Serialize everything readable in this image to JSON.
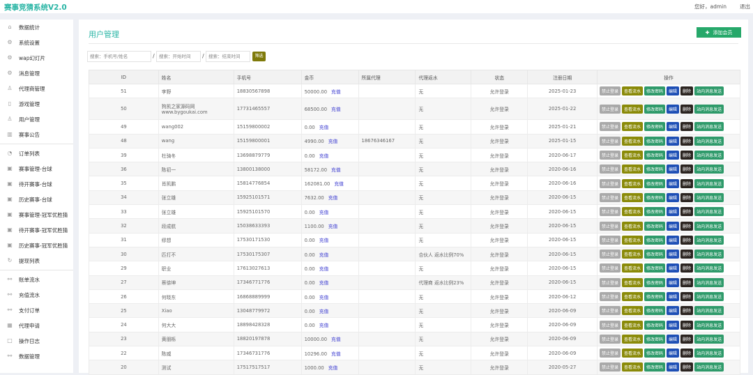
{
  "app": {
    "title": "赛事竞猜系统V2.0",
    "greeting": "您好，admin",
    "logout": "退出"
  },
  "sidebar": {
    "groups": [
      [
        {
          "label": "数据统计",
          "icon": "home-icon"
        },
        {
          "label": "系统设置",
          "icon": "gear-icon"
        },
        {
          "label": "wap幻灯片",
          "icon": "gear-icon"
        },
        {
          "label": "消息管理",
          "icon": "gear-icon"
        },
        {
          "label": "代理商管理",
          "icon": "user-icon"
        },
        {
          "label": "游戏管理",
          "icon": "file-icon"
        },
        {
          "label": "用户管理",
          "icon": "users-icon"
        },
        {
          "label": "赛事公告",
          "icon": "book-icon"
        }
      ],
      [
        {
          "label": "订单列表",
          "icon": "clock-icon"
        },
        {
          "label": "赛事管理-台球",
          "icon": "inbox-icon"
        },
        {
          "label": "待开赛事-台球",
          "icon": "inbox-icon"
        },
        {
          "label": "历史赛事-台球",
          "icon": "inbox-icon"
        },
        {
          "label": "赛事管理-冠军优胜猜",
          "icon": "inbox-icon"
        },
        {
          "label": "待开赛事-冠军优胜猜",
          "icon": "inbox-icon"
        },
        {
          "label": "历史赛事-冠军优胜猜",
          "icon": "inbox-icon"
        },
        {
          "label": "提现列表",
          "icon": "refresh-icon"
        }
      ],
      [
        {
          "label": "账单流水",
          "icon": "link-icon"
        },
        {
          "label": "充值流水",
          "icon": "link-icon"
        },
        {
          "label": "支付订单",
          "icon": "link-icon"
        },
        {
          "label": "代理申请",
          "icon": "grid-icon"
        },
        {
          "label": "操作日志",
          "icon": "square-icon"
        },
        {
          "label": "数据管理",
          "icon": "link-icon"
        }
      ]
    ]
  },
  "page": {
    "title": "用户管理",
    "add_button": "添加会员",
    "search": {
      "keyword_placeholder": "搜索：手机号/姓名",
      "start_placeholder": "搜索：开始时间",
      "end_placeholder": "搜索：结束时间",
      "filter_button": "筛选"
    }
  },
  "table": {
    "columns": [
      "ID",
      "姓名",
      "手机号",
      "金币",
      "所属代理",
      "代理返水",
      "状态",
      "注册日期",
      "操作"
    ],
    "recharge_label": "充值",
    "actions": [
      {
        "label": "禁止登录",
        "color": "#a9a9a9"
      },
      {
        "label": "查看流水",
        "color": "#8a8a08"
      },
      {
        "label": "修改密码",
        "color": "#2e9a6a"
      },
      {
        "label": "编辑",
        "color": "#1e4fb5"
      },
      {
        "label": "删除",
        "color": "#2b2420"
      },
      {
        "label": "站内消息发送",
        "color": "#2e9a6a"
      }
    ],
    "rows": [
      {
        "id": "51",
        "name": "李野",
        "phone": "18830567898",
        "coins": "50000.00",
        "agent": "",
        "rebate": "无",
        "status": "允许登录",
        "date": "2025-01-23"
      },
      {
        "id": "50",
        "name": "狗凯之家源码网",
        "name2": "www.bygoukai.com",
        "phone": "17731465557",
        "coins": "68500.00",
        "agent": "",
        "rebate": "无",
        "status": "允许登录",
        "date": "2025-01-22"
      },
      {
        "id": "49",
        "name": "wang002",
        "phone": "15159800002",
        "coins": "0.00",
        "agent": "",
        "rebate": "无",
        "status": "允许登录",
        "date": "2025-01-21"
      },
      {
        "id": "48",
        "name": "wang",
        "phone": "15159800001",
        "coins": "4990.00",
        "agent": "18676346167",
        "rebate": "无",
        "status": "允许登录",
        "date": "2025-01-15"
      },
      {
        "id": "39",
        "name": "杜骑冬",
        "phone": "13698879779",
        "coins": "0.00",
        "agent": "",
        "rebate": "无",
        "status": "允许登录",
        "date": "2020-06-17"
      },
      {
        "id": "36",
        "name": "陈初一",
        "phone": "13800138000",
        "coins": "58172.00",
        "agent": "",
        "rebate": "无",
        "status": "允许登录",
        "date": "2020-06-16"
      },
      {
        "id": "35",
        "name": "肖凯鹏",
        "phone": "15814776854",
        "coins": "162081.00",
        "agent": "",
        "rebate": "无",
        "status": "允许登录",
        "date": "2020-06-16"
      },
      {
        "id": "34",
        "name": "张立雄",
        "phone": "15925101571",
        "coins": "7632.00",
        "agent": "",
        "rebate": "无",
        "status": "允许登录",
        "date": "2020-06-15"
      },
      {
        "id": "33",
        "name": "张立雄",
        "phone": "15925101570",
        "coins": "0.00",
        "agent": "",
        "rebate": "无",
        "status": "允许登录",
        "date": "2020-06-15"
      },
      {
        "id": "32",
        "name": "段成航",
        "phone": "15038633393",
        "coins": "1100.00",
        "agent": "",
        "rebate": "无",
        "status": "允许登录",
        "date": "2020-06-15"
      },
      {
        "id": "31",
        "name": "缪想",
        "phone": "17530171530",
        "coins": "0.00",
        "agent": "",
        "rebate": "无",
        "status": "允许登录",
        "date": "2020-06-15"
      },
      {
        "id": "30",
        "name": "匹打不",
        "phone": "17530175307",
        "coins": "0.00",
        "agent": "",
        "rebate": "合伙人 返水比例70%",
        "status": "允许登录",
        "date": "2020-06-15"
      },
      {
        "id": "29",
        "name": "职业",
        "phone": "17613027613",
        "coins": "0.00",
        "agent": "",
        "rebate": "无",
        "status": "允许登录",
        "date": "2020-06-15"
      },
      {
        "id": "27",
        "name": "蔡徐坤",
        "phone": "17346771776",
        "coins": "0.00",
        "agent": "",
        "rebate": "代理商 返水比例23%",
        "status": "允许登录",
        "date": "2020-06-15"
      },
      {
        "id": "26",
        "name": "何晓东",
        "phone": "16868889999",
        "coins": "0.00",
        "agent": "",
        "rebate": "无",
        "status": "允许登录",
        "date": "2020-06-12"
      },
      {
        "id": "25",
        "name": "Xiao",
        "phone": "13048779972",
        "coins": "0.00",
        "agent": "",
        "rebate": "无",
        "status": "允许登录",
        "date": "2020-06-09"
      },
      {
        "id": "24",
        "name": "何大大",
        "phone": "18898428328",
        "coins": "0.00",
        "agent": "",
        "rebate": "无",
        "status": "允许登录",
        "date": "2020-06-09"
      },
      {
        "id": "23",
        "name": "黄朋栎",
        "phone": "18820197878",
        "coins": "10000.00",
        "agent": "",
        "rebate": "无",
        "status": "允许登录",
        "date": "2020-06-09"
      },
      {
        "id": "22",
        "name": "陈威",
        "phone": "17346731776",
        "coins": "10296.00",
        "agent": "",
        "rebate": "无",
        "status": "允许登录",
        "date": "2020-06-09"
      },
      {
        "id": "20",
        "name": "测试",
        "phone": "17517517517",
        "coins": "1000.00",
        "agent": "",
        "rebate": "无",
        "status": "允许登录",
        "date": "2020-05-27"
      }
    ]
  }
}
